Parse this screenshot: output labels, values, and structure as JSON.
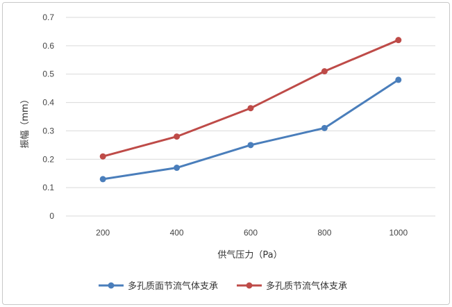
{
  "chart_data": {
    "type": "line",
    "title": "",
    "xlabel": "供气压力（Pa）",
    "ylabel": "振幅（mm）",
    "categories": [
      "200",
      "400",
      "600",
      "800",
      "1000"
    ],
    "ylim": [
      0,
      0.7
    ],
    "yticks": [
      "0",
      "0.1",
      "0.2",
      "0.3",
      "0.4",
      "0.5",
      "0.6",
      "0.7"
    ],
    "grid": true,
    "legend_position": "bottom",
    "series": [
      {
        "name": "多孔质面节流气体支承",
        "values": [
          0.13,
          0.17,
          0.25,
          0.31,
          0.48
        ],
        "color": "#4a7ebb"
      },
      {
        "name": "多孔质节流气体支承",
        "values": [
          0.21,
          0.28,
          0.38,
          0.51,
          0.62
        ],
        "color": "#be4b48"
      }
    ]
  }
}
